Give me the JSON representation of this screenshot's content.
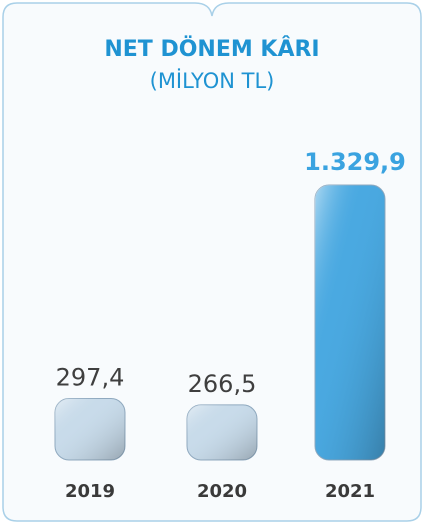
{
  "chart_data": {
    "type": "bar",
    "title": "NET DÖNEM KÂRI",
    "subtitle": "(MİLYON TL)",
    "categories": [
      "2019",
      "2020",
      "2021"
    ],
    "values": [
      297.4,
      266.5,
      1329.9
    ],
    "value_labels": [
      "297,4",
      "266,5",
      "1.329,9"
    ],
    "colors": [
      "#c8dbea",
      "#c8dbea",
      "#4aa9e1"
    ]
  }
}
